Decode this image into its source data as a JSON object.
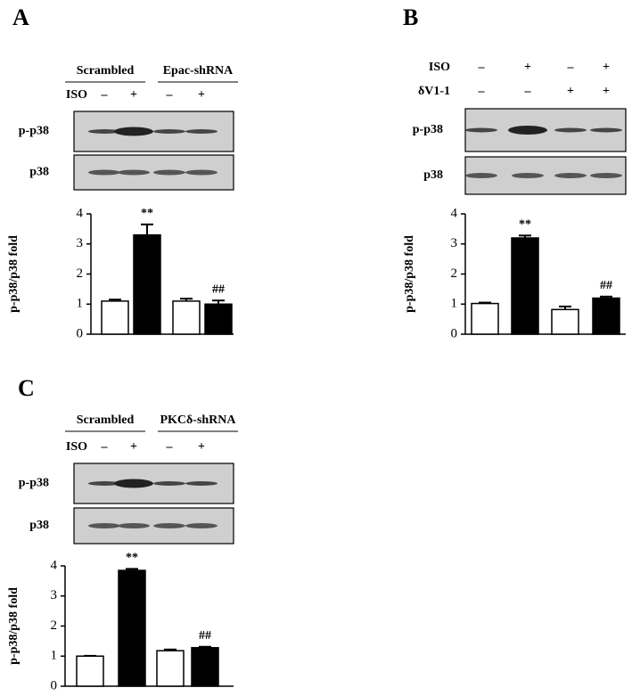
{
  "chart_data": [
    {
      "type": "bar",
      "panel": "A",
      "groups": [
        "Scrambled",
        "Epac-shRNA"
      ],
      "conditions": [
        {
          "name": "ISO",
          "signs": [
            "–",
            "+",
            "–",
            "+"
          ]
        }
      ],
      "blot_rows": [
        "p-p38",
        "p38"
      ],
      "ylabel": "p-p38/p38 fold",
      "values": [
        1.1,
        3.3,
        1.1,
        1.0
      ],
      "errors": [
        0.05,
        0.35,
        0.08,
        0.12
      ],
      "colors": [
        "#ffffff",
        "#000000",
        "#ffffff",
        "#000000"
      ],
      "annotations": [
        null,
        "**",
        null,
        "##"
      ],
      "ylim": [
        0,
        4
      ],
      "yticks": [
        0,
        1,
        2,
        3,
        4
      ]
    },
    {
      "type": "bar",
      "panel": "B",
      "conditions": [
        {
          "name": "ISO",
          "signs": [
            "–",
            "+",
            "–",
            "+"
          ]
        },
        {
          "name": "δV1-1",
          "signs": [
            "–",
            "–",
            "+",
            "+"
          ]
        }
      ],
      "blot_rows": [
        "p-p38",
        "p38"
      ],
      "ylabel": "p-p38/p38 fold",
      "values": [
        1.02,
        3.2,
        0.82,
        1.2
      ],
      "errors": [
        0.03,
        0.08,
        0.1,
        0.05
      ],
      "colors": [
        "#ffffff",
        "#000000",
        "#ffffff",
        "#000000"
      ],
      "annotations": [
        null,
        "**",
        null,
        "##"
      ],
      "ylim": [
        0,
        4
      ],
      "yticks": [
        0,
        1,
        2,
        3,
        4
      ]
    },
    {
      "type": "bar",
      "panel": "C",
      "groups": [
        "Scrambled",
        "PKCδ-shRNA"
      ],
      "conditions": [
        {
          "name": "ISO",
          "signs": [
            "–",
            "+",
            "–",
            "+"
          ]
        }
      ],
      "blot_rows": [
        "p-p38",
        "p38"
      ],
      "ylabel": "p-p38/p38 fold",
      "values": [
        1.0,
        3.85,
        1.18,
        1.28
      ],
      "errors": [
        0.01,
        0.05,
        0.04,
        0.03
      ],
      "colors": [
        "#ffffff",
        "#000000",
        "#ffffff",
        "#000000"
      ],
      "annotations": [
        null,
        "**",
        null,
        "##"
      ],
      "ylim": [
        0,
        4
      ],
      "yticks": [
        0,
        1,
        2,
        3,
        4
      ]
    }
  ]
}
